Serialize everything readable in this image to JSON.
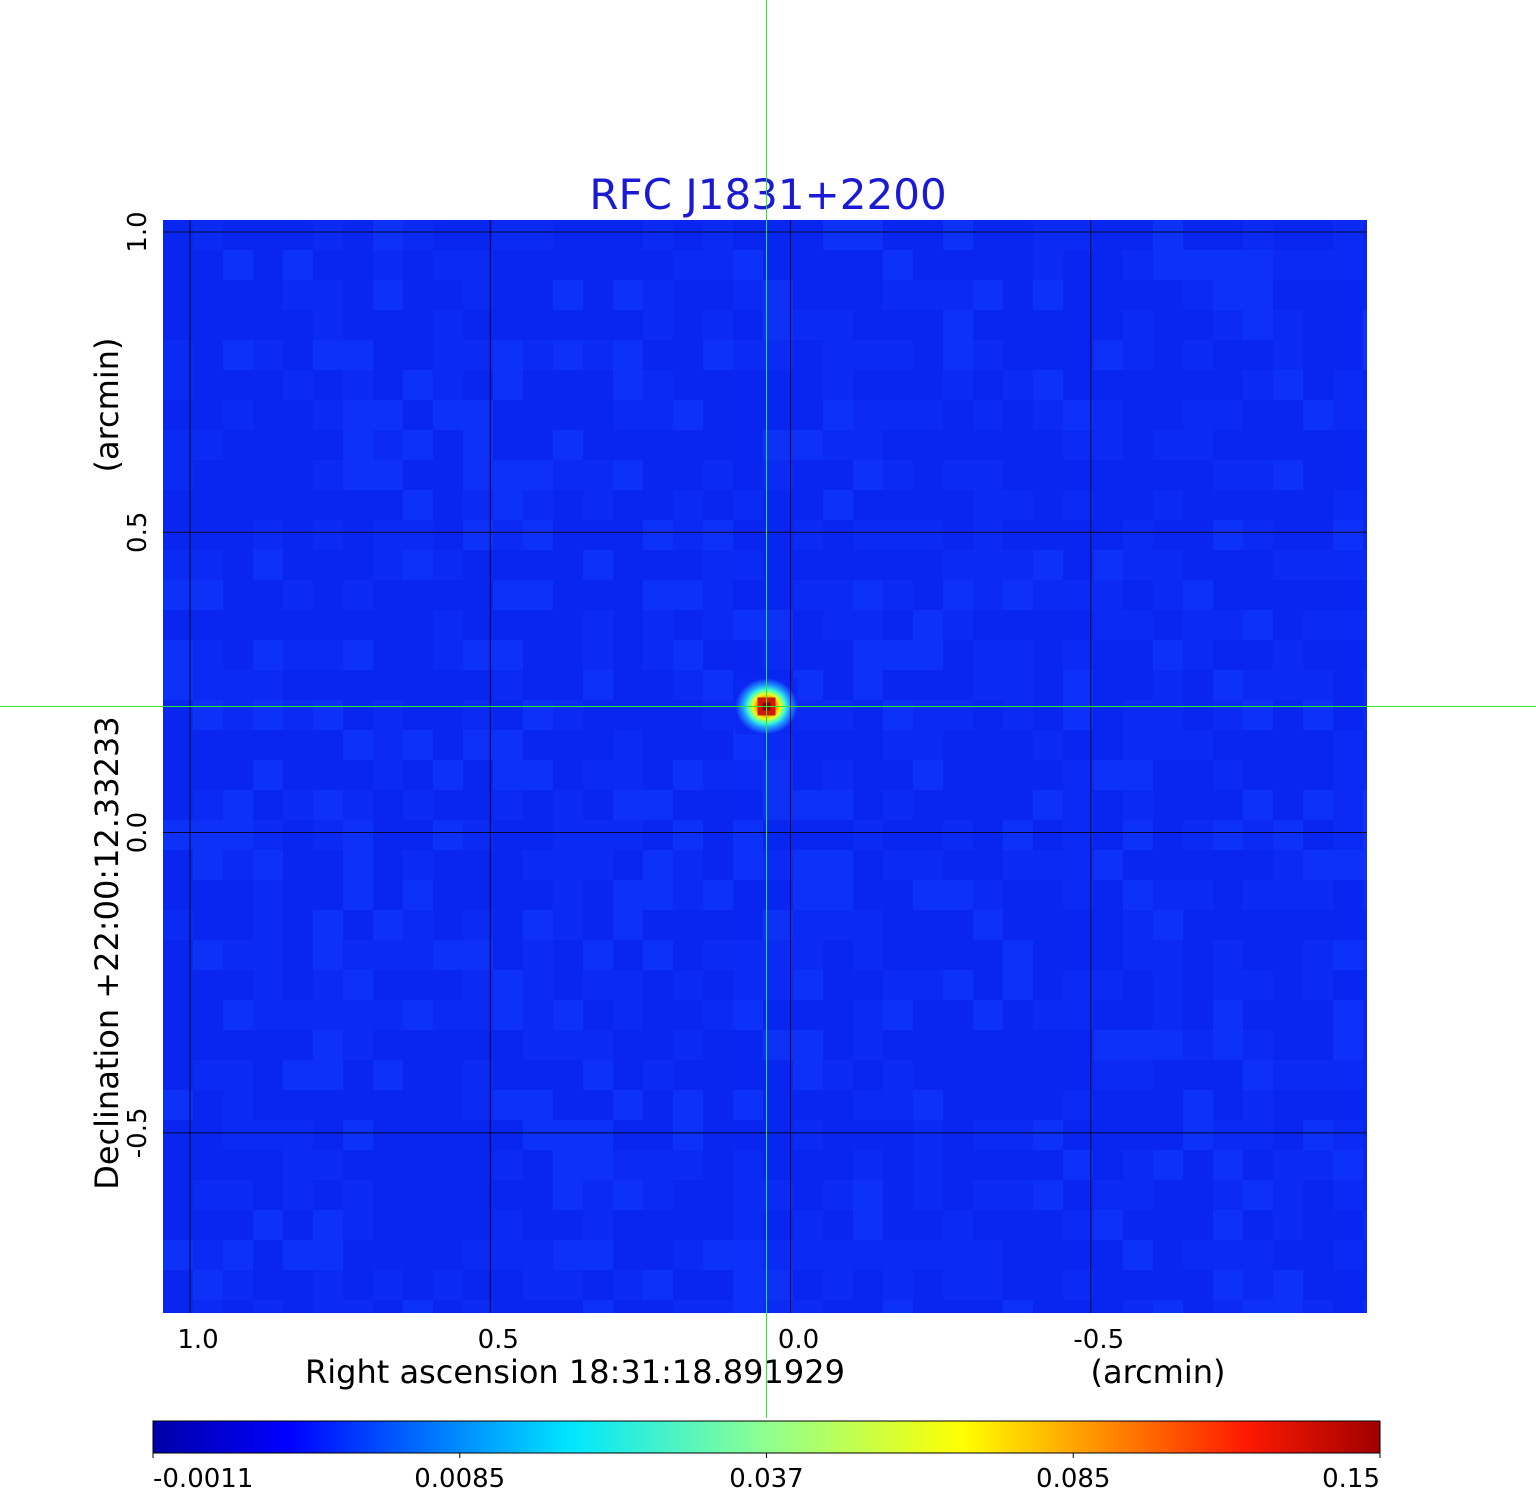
{
  "chart_data": {
    "type": "heatmap",
    "title": "RFC J1831+2200",
    "xlabel": "Right ascension  18:31:18.891929",
    "xunit": "(arcmin)",
    "ylabel": "Declination  +22:00:12.33233",
    "yunit": "(arcmin)",
    "x_ticks": [
      {
        "value": 1.0,
        "label": "1.0"
      },
      {
        "value": 0.5,
        "label": "0.5"
      },
      {
        "value": 0.0,
        "label": "0.0"
      },
      {
        "value": -0.5,
        "label": "-0.5"
      }
    ],
    "y_ticks": [
      {
        "value": 1.0,
        "label": "1.0"
      },
      {
        "value": 0.5,
        "label": "0.5"
      },
      {
        "value": 0.0,
        "label": "0.0"
      },
      {
        "value": -0.5,
        "label": "-0.5"
      }
    ],
    "xlim": [
      1.045,
      -0.96
    ],
    "ylim": [
      -0.8,
      1.02
    ],
    "x_reversed": true,
    "grid": true,
    "crosshair": {
      "x": 0.04,
      "y": 0.21,
      "color": "#2ee82e"
    },
    "peak": {
      "x": 0.04,
      "y": 0.21,
      "value": 0.15
    },
    "colormap": "jet",
    "colorbar": {
      "placement": "bottom",
      "tick_labels": [
        "-0.0011",
        "0.0085",
        "0.037",
        "0.085",
        "0.15"
      ]
    }
  }
}
